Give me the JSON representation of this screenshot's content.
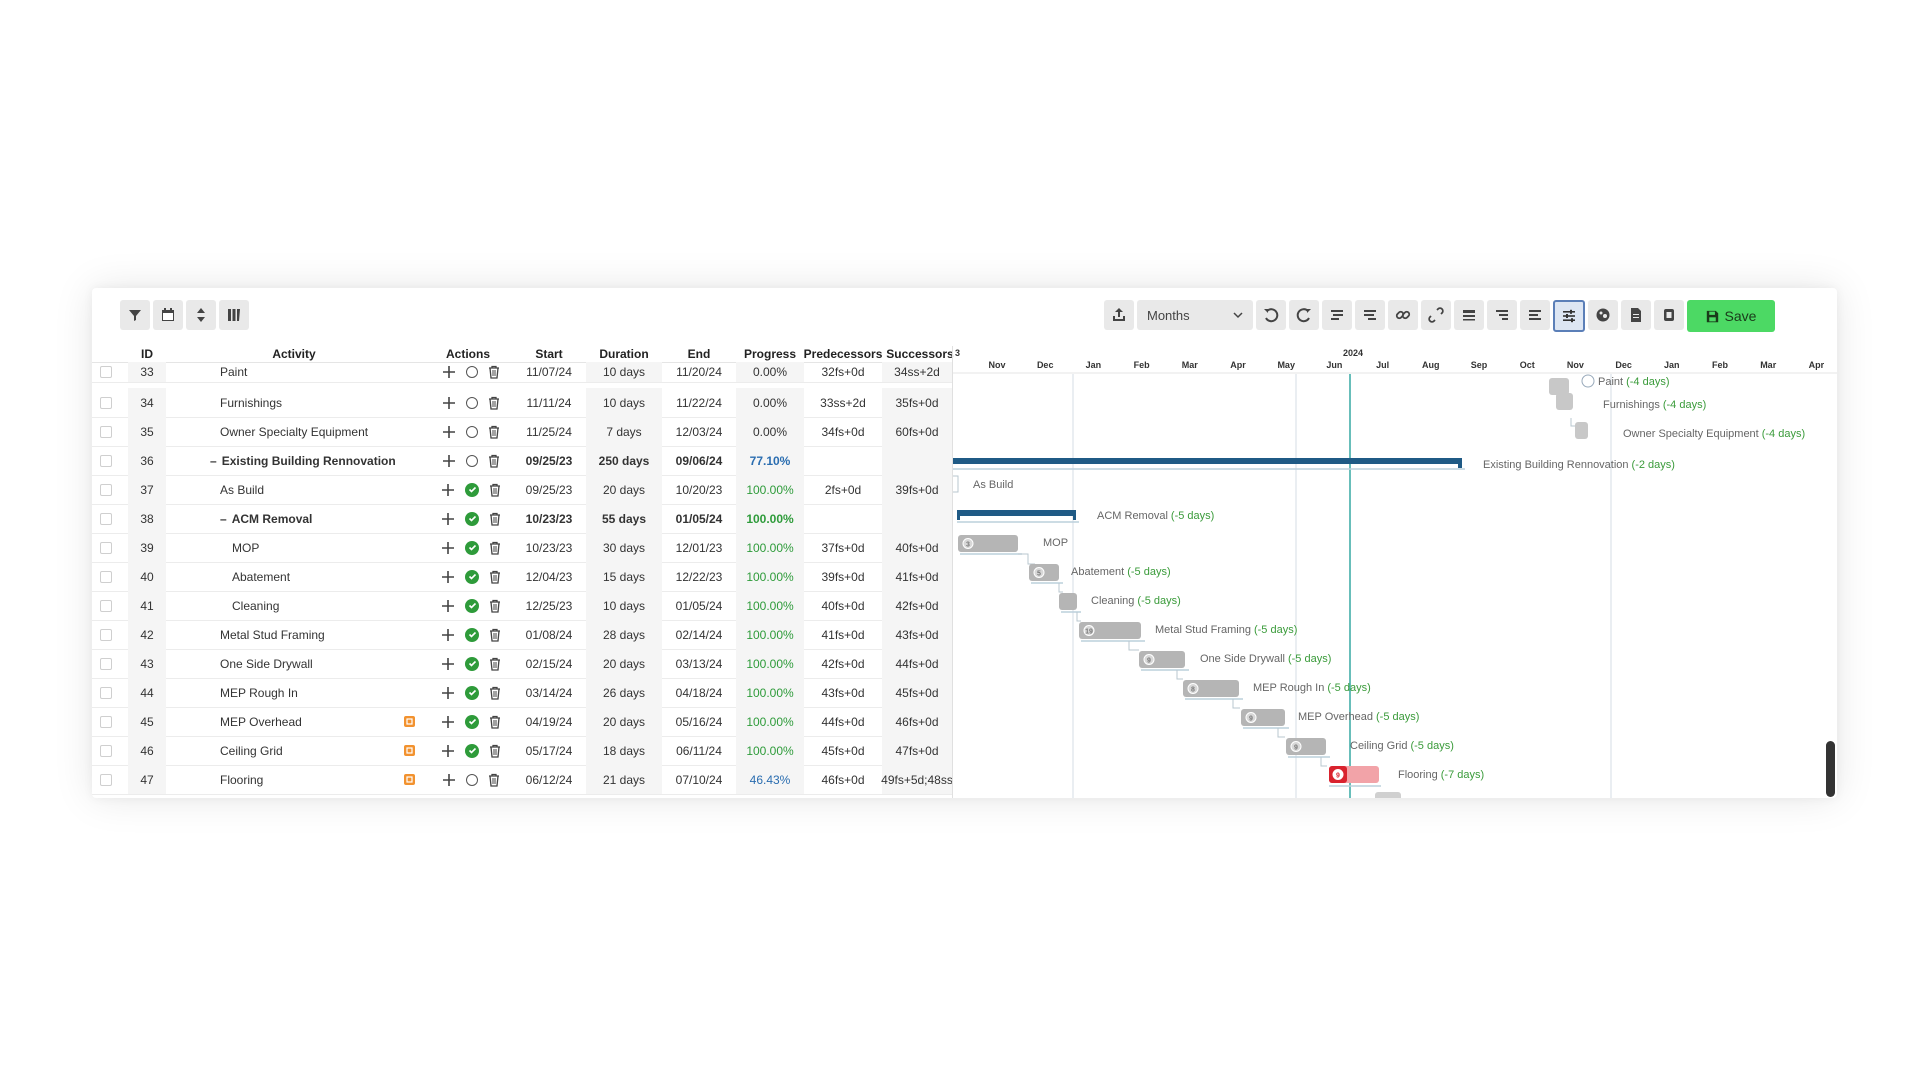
{
  "toolbar": {
    "scale_value": "Months",
    "save_label": "Save"
  },
  "columns": {
    "id": "ID",
    "activity": "Activity",
    "actions": "Actions",
    "start": "Start",
    "duration": "Duration",
    "end": "End",
    "progress": "Progress",
    "predecessors": "Predecessors",
    "successors": "Successors"
  },
  "rows": [
    {
      "id": "33",
      "activity": "Paint",
      "indent": 1,
      "bold": false,
      "collapse": "",
      "flag": false,
      "status": "open",
      "start": "11/07/24",
      "duration": "10 days",
      "end": "11/20/24",
      "progress": "0.00%",
      "progress_color": "normal",
      "pred": "32fs+0d",
      "succ": "34ss+2d"
    },
    {
      "id": "34",
      "activity": "Furnishings",
      "indent": 1,
      "bold": false,
      "collapse": "",
      "flag": false,
      "status": "open",
      "start": "11/11/24",
      "duration": "10 days",
      "end": "11/22/24",
      "progress": "0.00%",
      "progress_color": "normal",
      "pred": "33ss+2d",
      "succ": "35fs+0d"
    },
    {
      "id": "35",
      "activity": "Owner Specialty Equipment",
      "indent": 1,
      "bold": false,
      "collapse": "",
      "flag": false,
      "status": "open",
      "start": "11/25/24",
      "duration": "7 days",
      "end": "12/03/24",
      "progress": "0.00%",
      "progress_color": "normal",
      "pred": "34fs+0d",
      "succ": "60fs+0d"
    },
    {
      "id": "36",
      "activity": "Existing Building Rennovation",
      "indent": 0,
      "bold": true,
      "collapse": "–",
      "flag": false,
      "status": "open",
      "start": "09/25/23",
      "duration": "250 days",
      "end": "09/06/24",
      "progress": "77.10%",
      "progress_color": "blue",
      "pred": "",
      "succ": ""
    },
    {
      "id": "37",
      "activity": "As Build",
      "indent": 1,
      "bold": false,
      "collapse": "",
      "flag": false,
      "status": "done",
      "start": "09/25/23",
      "duration": "20 days",
      "end": "10/20/23",
      "progress": "100.00%",
      "progress_color": "green",
      "pred": "2fs+0d",
      "succ": "39fs+0d"
    },
    {
      "id": "38",
      "activity": "ACM Removal",
      "indent": 1,
      "bold": true,
      "collapse": "–",
      "flag": false,
      "status": "done",
      "start": "10/23/23",
      "duration": "55 days",
      "end": "01/05/24",
      "progress": "100.00%",
      "progress_color": "green",
      "pred": "",
      "succ": ""
    },
    {
      "id": "39",
      "activity": "MOP",
      "indent": 2,
      "bold": false,
      "collapse": "",
      "flag": false,
      "status": "done",
      "start": "10/23/23",
      "duration": "30 days",
      "end": "12/01/23",
      "progress": "100.00%",
      "progress_color": "green",
      "pred": "37fs+0d",
      "succ": "40fs+0d"
    },
    {
      "id": "40",
      "activity": "Abatement",
      "indent": 2,
      "bold": false,
      "collapse": "",
      "flag": false,
      "status": "done",
      "start": "12/04/23",
      "duration": "15 days",
      "end": "12/22/23",
      "progress": "100.00%",
      "progress_color": "green",
      "pred": "39fs+0d",
      "succ": "41fs+0d"
    },
    {
      "id": "41",
      "activity": "Cleaning",
      "indent": 2,
      "bold": false,
      "collapse": "",
      "flag": false,
      "status": "done",
      "start": "12/25/23",
      "duration": "10 days",
      "end": "01/05/24",
      "progress": "100.00%",
      "progress_color": "green",
      "pred": "40fs+0d",
      "succ": "42fs+0d"
    },
    {
      "id": "42",
      "activity": "Metal Stud Framing",
      "indent": 1,
      "bold": false,
      "collapse": "",
      "flag": false,
      "status": "done",
      "start": "01/08/24",
      "duration": "28 days",
      "end": "02/14/24",
      "progress": "100.00%",
      "progress_color": "green",
      "pred": "41fs+0d",
      "succ": "43fs+0d"
    },
    {
      "id": "43",
      "activity": "One Side Drywall",
      "indent": 1,
      "bold": false,
      "collapse": "",
      "flag": false,
      "status": "done",
      "start": "02/15/24",
      "duration": "20 days",
      "end": "03/13/24",
      "progress": "100.00%",
      "progress_color": "green",
      "pred": "42fs+0d",
      "succ": "44fs+0d"
    },
    {
      "id": "44",
      "activity": "MEP Rough In",
      "indent": 1,
      "bold": false,
      "collapse": "",
      "flag": false,
      "status": "done",
      "start": "03/14/24",
      "duration": "26 days",
      "end": "04/18/24",
      "progress": "100.00%",
      "progress_color": "green",
      "pred": "43fs+0d",
      "succ": "45fs+0d"
    },
    {
      "id": "45",
      "activity": "MEP Overhead",
      "indent": 1,
      "bold": false,
      "collapse": "",
      "flag": true,
      "status": "done",
      "start": "04/19/24",
      "duration": "20 days",
      "end": "05/16/24",
      "progress": "100.00%",
      "progress_color": "green",
      "pred": "44fs+0d",
      "succ": "46fs+0d"
    },
    {
      "id": "46",
      "activity": "Ceiling Grid",
      "indent": 1,
      "bold": false,
      "collapse": "",
      "flag": true,
      "status": "done",
      "start": "05/17/24",
      "duration": "18 days",
      "end": "06/11/24",
      "progress": "100.00%",
      "progress_color": "green",
      "pred": "45fs+0d",
      "succ": "47fs+0d"
    },
    {
      "id": "47",
      "activity": "Flooring",
      "indent": 1,
      "bold": false,
      "collapse": "",
      "flag": true,
      "status": "open",
      "start": "06/12/24",
      "duration": "21 days",
      "end": "07/10/24",
      "progress": "46.43%",
      "progress_color": "blue",
      "pred": "46fs+0d",
      "succ": "49fs+5d;48ss"
    }
  ],
  "timeline": {
    "year_label": "2024",
    "edge_label": "3",
    "months": [
      "Nov",
      "Dec",
      "Jan",
      "Feb",
      "Mar",
      "Apr",
      "May",
      "Jun",
      "Jul",
      "Aug",
      "Sep",
      "Oct",
      "Nov",
      "Dec",
      "Jan",
      "Feb",
      "Mar",
      "Apr"
    ]
  },
  "gantt_labels": {
    "paint": "Paint",
    "paint_delta": "(-4 days)",
    "furn": "Furnishings",
    "furn_delta": "(-4 days)",
    "owner": "Owner Specialty Equipment",
    "owner_delta": "(-4 days)",
    "ebr": "Existing Building Rennovation",
    "ebr_delta": "(-2 days)",
    "asbuild": "As Build",
    "acm": "ACM Removal",
    "acm_delta": "(-5 days)",
    "mop": "MOP",
    "abatement": "Abatement",
    "abatement_delta": "(-5 days)",
    "cleaning": "Cleaning",
    "cleaning_delta": "(-5 days)",
    "msf": "Metal Stud Framing",
    "msf_delta": "(-5 days)",
    "osd": "One Side Drywall",
    "osd_delta": "(-5 days)",
    "mep_rough": "MEP Rough In",
    "mep_rough_delta": "(-5 days)",
    "mep_over": "MEP Overhead",
    "mep_over_delta": "(-5 days)",
    "ceiling": "Ceiling Grid",
    "ceiling_delta": "(-5 days)",
    "flooring": "Flooring",
    "flooring_delta": "(-7 days)",
    "badge_mop": "3",
    "badge_abatement": "5",
    "badge_msf": "19",
    "badge_osd": "9",
    "badge_mep_rough": "8",
    "badge_mep_over": "9",
    "badge_ceiling": "9",
    "badge_flooring": "9"
  },
  "colors": {
    "summary_bar": "#1f5a85",
    "task_bar": "#b5b5b5",
    "overdue_bar": "#f2a3a8",
    "overdue_badge": "#d9232e",
    "today_line": "#37a8a3",
    "delta_text": "#3a9b3a",
    "label_text": "#666666"
  }
}
